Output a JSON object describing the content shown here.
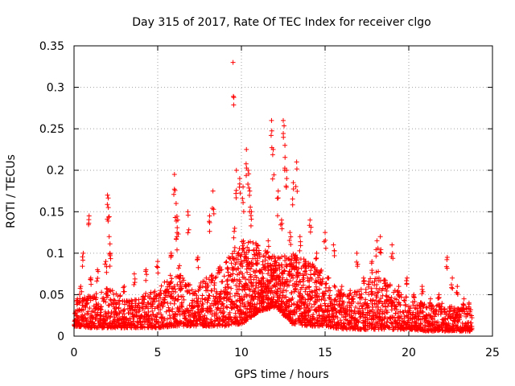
{
  "chart_data": {
    "type": "scatter",
    "title": "Day 315 of 2017, Rate Of TEC Index for receiver clgo",
    "xlabel": "GPS time / hours",
    "ylabel": "ROTI / TECUs",
    "xlim": [
      0,
      25
    ],
    "ylim": [
      0,
      0.35
    ],
    "xticks": [
      0,
      5,
      10,
      15,
      20,
      25
    ],
    "xtick_labels": [
      "0",
      "5",
      "10",
      "15",
      "20",
      "25"
    ],
    "yticks": [
      0,
      0.05,
      0.1,
      0.15,
      0.2,
      0.25,
      0.3,
      0.35
    ],
    "ytick_labels": [
      "0",
      "0.05",
      "0.1",
      "0.15",
      "0.2",
      "0.25",
      "0.3",
      "0.35"
    ],
    "grid": true,
    "marker": "+",
    "color": "#ff0000",
    "points": [
      [
        0.1,
        0.03
      ],
      [
        0.2,
        0.045
      ],
      [
        0.4,
        0.06
      ],
      [
        0.55,
        0.1
      ],
      [
        0.8,
        0.045
      ],
      [
        0.9,
        0.145
      ],
      [
        1.0,
        0.07
      ],
      [
        1.4,
        0.08
      ],
      [
        1.8,
        0.02
      ],
      [
        1.9,
        0.09
      ],
      [
        2.0,
        0.17
      ],
      [
        2.05,
        0.155
      ],
      [
        2.1,
        0.12
      ],
      [
        2.15,
        0.1
      ],
      [
        2.5,
        0.04
      ],
      [
        3.0,
        0.06
      ],
      [
        3.6,
        0.075
      ],
      [
        4.3,
        0.08
      ],
      [
        5.0,
        0.09
      ],
      [
        5.5,
        0.055
      ],
      [
        5.8,
        0.1
      ],
      [
        6.0,
        0.195
      ],
      [
        6.1,
        0.16
      ],
      [
        6.15,
        0.12
      ],
      [
        6.2,
        0.14
      ],
      [
        6.3,
        0.085
      ],
      [
        6.8,
        0.15
      ],
      [
        7.4,
        0.095
      ],
      [
        7.9,
        0.07
      ],
      [
        8.1,
        0.145
      ],
      [
        8.3,
        0.175
      ],
      [
        8.7,
        0.05
      ],
      [
        9.2,
        0.06
      ],
      [
        9.5,
        0.33
      ],
      [
        9.6,
        0.13
      ],
      [
        9.7,
        0.2
      ],
      [
        9.9,
        0.19
      ],
      [
        10.1,
        0.18
      ],
      [
        10.3,
        0.225
      ],
      [
        10.4,
        0.2
      ],
      [
        10.5,
        0.175
      ],
      [
        10.6,
        0.15
      ],
      [
        10.9,
        0.11
      ],
      [
        11.2,
        0.08
      ],
      [
        11.6,
        0.115
      ],
      [
        11.8,
        0.26
      ],
      [
        11.9,
        0.225
      ],
      [
        12.2,
        0.175
      ],
      [
        12.4,
        0.14
      ],
      [
        12.5,
        0.26
      ],
      [
        12.6,
        0.23
      ],
      [
        12.7,
        0.2
      ],
      [
        12.9,
        0.125
      ],
      [
        13.1,
        0.185
      ],
      [
        13.3,
        0.21
      ],
      [
        13.5,
        0.12
      ],
      [
        13.8,
        0.09
      ],
      [
        14.1,
        0.14
      ],
      [
        14.5,
        0.1
      ],
      [
        15.0,
        0.125
      ],
      [
        15.5,
        0.11
      ],
      [
        16.0,
        0.06
      ],
      [
        16.5,
        0.055
      ],
      [
        16.9,
        0.1
      ],
      [
        17.3,
        0.07
      ],
      [
        17.8,
        0.09
      ],
      [
        18.1,
        0.115
      ],
      [
        18.3,
        0.12
      ],
      [
        18.6,
        0.065
      ],
      [
        19.0,
        0.11
      ],
      [
        19.4,
        0.06
      ],
      [
        19.9,
        0.07
      ],
      [
        20.3,
        0.05
      ],
      [
        20.8,
        0.06
      ],
      [
        21.3,
        0.045
      ],
      [
        21.8,
        0.05
      ],
      [
        22.3,
        0.095
      ],
      [
        22.6,
        0.07
      ],
      [
        22.9,
        0.06
      ],
      [
        23.3,
        0.045
      ],
      [
        23.6,
        0.04
      ]
    ],
    "envelope": {
      "hours": [
        0,
        1,
        2,
        3,
        4,
        5,
        6,
        7,
        8,
        9,
        10,
        11,
        12,
        13,
        14,
        15,
        16,
        17,
        18,
        19,
        20,
        21,
        22,
        23,
        23.8
      ],
      "low": [
        0.012,
        0.01,
        0.01,
        0.01,
        0.01,
        0.01,
        0.012,
        0.012,
        0.012,
        0.012,
        0.015,
        0.03,
        0.035,
        0.015,
        0.012,
        0.012,
        0.008,
        0.008,
        0.008,
        0.008,
        0.008,
        0.006,
        0.006,
        0.006,
        0.006
      ],
      "high": [
        0.045,
        0.05,
        0.06,
        0.045,
        0.05,
        0.06,
        0.08,
        0.06,
        0.07,
        0.09,
        0.12,
        0.11,
        0.095,
        0.1,
        0.09,
        0.08,
        0.05,
        0.055,
        0.08,
        0.06,
        0.045,
        0.04,
        0.04,
        0.035,
        0.035
      ],
      "density": [
        110,
        110,
        110,
        110,
        110,
        110,
        120,
        120,
        120,
        130,
        200,
        200,
        190,
        190,
        170,
        140,
        110,
        110,
        130,
        110,
        110,
        110,
        110,
        110,
        90
      ]
    }
  }
}
